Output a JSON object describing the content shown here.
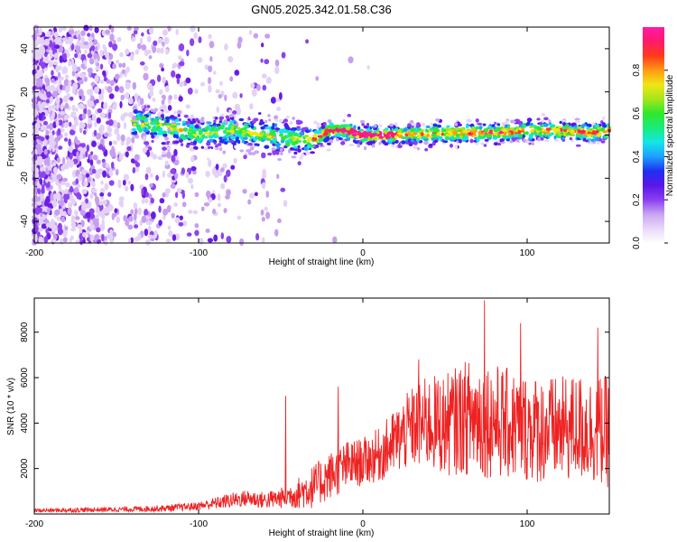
{
  "title": "GN05.2025.342.01.58.C36",
  "chart_data": [
    {
      "type": "heatmap",
      "name": "spectrogram",
      "xlabel": "Height of straight line (km)",
      "ylabel": "Frequency (Hz)",
      "xlim": [
        -200,
        150
      ],
      "ylim": [
        -50,
        50
      ],
      "xticks": [
        -200,
        -100,
        0,
        100
      ],
      "yticks": [
        -40,
        -20,
        0,
        20,
        40
      ],
      "colorbar": {
        "label": "Normalized spectral amplitude",
        "range": [
          0,
          1
        ],
        "ticks": [
          0.0,
          0.2,
          0.4,
          0.6,
          0.8
        ],
        "colors": [
          "#ffffff",
          "#e8d8f8",
          "#c9a6f2",
          "#8a3ff0",
          "#5a17e8",
          "#1f2ff0",
          "#1fa0ff",
          "#14e6e6",
          "#1aeb7a",
          "#2ee82e",
          "#a6e61a",
          "#f0e614",
          "#ff9a14",
          "#ff3a1a",
          "#ff1a6a",
          "#ff1aa8"
        ]
      },
      "ridge": {
        "description_points_x": [
          -140,
          -120,
          -100,
          -80,
          -60,
          -40,
          -30,
          -20,
          -10,
          0,
          20,
          50,
          80,
          100,
          120,
          140,
          150
        ],
        "description_points_y": [
          6,
          4,
          0,
          2,
          0,
          -2,
          -2,
          2,
          2,
          0,
          0,
          1,
          1,
          2,
          2,
          1,
          2
        ]
      }
    },
    {
      "type": "line",
      "name": "snr",
      "xlabel": "Height of straight line (km)",
      "ylabel": "SNR (10 * v/v)",
      "xlim": [
        -200,
        150
      ],
      "ylim": [
        0,
        9500
      ],
      "xticks": [
        -200,
        -100,
        0,
        100
      ],
      "yticks": [
        2000,
        4000,
        6000,
        8000
      ],
      "color": "#ee2222",
      "envelope_x": [
        -200,
        -150,
        -120,
        -100,
        -80,
        -70,
        -60,
        -50,
        -40,
        -30,
        -20,
        -10,
        0,
        10,
        20,
        30,
        40,
        50,
        60,
        70,
        80,
        90,
        100,
        110,
        120,
        130,
        140,
        150
      ],
      "envelope_mean": [
        150,
        200,
        250,
        350,
        600,
        700,
        600,
        700,
        900,
        1200,
        1700,
        2100,
        2300,
        2600,
        3200,
        3800,
        4000,
        3900,
        4200,
        4300,
        4100,
        3900,
        3800,
        3700,
        3700,
        3800,
        3700,
        3600
      ],
      "envelope_spread": [
        120,
        150,
        200,
        250,
        450,
        500,
        500,
        600,
        900,
        1300,
        1400,
        1500,
        1400,
        1600,
        2000,
        2400,
        2800,
        3000,
        3300,
        3600,
        3400,
        3300,
        3200,
        3200,
        3100,
        3200,
        3200,
        3300
      ],
      "peaks": [
        {
          "x": 74,
          "y": 9400
        },
        {
          "x": 96,
          "y": 8400
        },
        {
          "x": 143,
          "y": 8200
        },
        {
          "x": 34,
          "y": 6800
        },
        {
          "x": -15,
          "y": 5600
        },
        {
          "x": -47,
          "y": 5200
        }
      ]
    }
  ]
}
